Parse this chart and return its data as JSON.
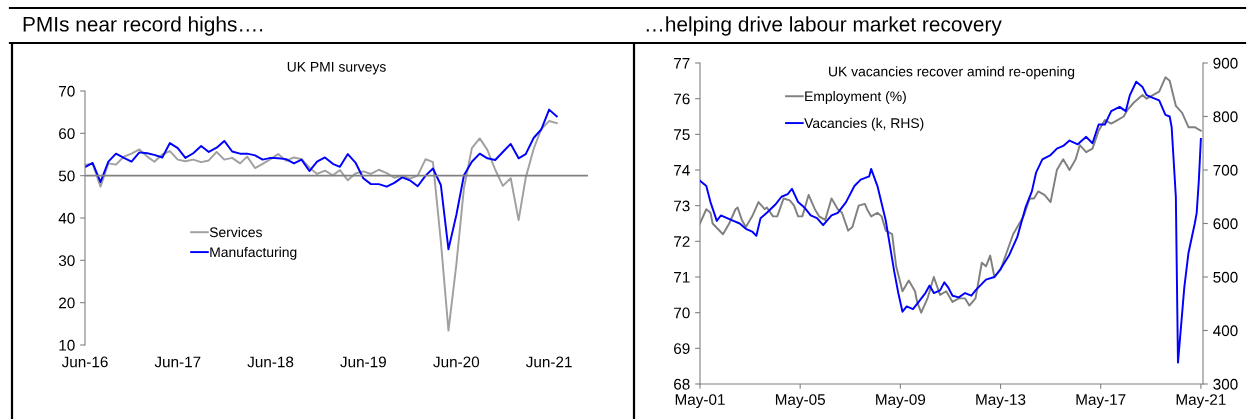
{
  "chart_data": [
    {
      "type": "line",
      "title": "PMIs near record highs….",
      "subtitle": "UK PMI surveys",
      "x": [
        "2016-06",
        "2016-07",
        "2016-08",
        "2016-09",
        "2016-10",
        "2016-11",
        "2016-12",
        "2017-01",
        "2017-02",
        "2017-03",
        "2017-04",
        "2017-05",
        "2017-06",
        "2017-07",
        "2017-08",
        "2017-09",
        "2017-10",
        "2017-11",
        "2017-12",
        "2018-01",
        "2018-02",
        "2018-03",
        "2018-04",
        "2018-05",
        "2018-06",
        "2018-07",
        "2018-08",
        "2018-09",
        "2018-10",
        "2018-11",
        "2018-12",
        "2019-01",
        "2019-02",
        "2019-03",
        "2019-04",
        "2019-05",
        "2019-06",
        "2019-07",
        "2019-08",
        "2019-09",
        "2019-10",
        "2019-11",
        "2019-12",
        "2020-01",
        "2020-02",
        "2020-03",
        "2020-04",
        "2020-05",
        "2020-06",
        "2020-07",
        "2020-08",
        "2020-09",
        "2020-10",
        "2020-11",
        "2020-12",
        "2021-01",
        "2021-02",
        "2021-03",
        "2021-04",
        "2021-05",
        "2021-06",
        "2021-07"
      ],
      "series": [
        {
          "name": "Services",
          "color": "#a0a0a0",
          "values": [
            52.5,
            52.8,
            47.4,
            52.9,
            52.6,
            54.5,
            55.2,
            56.2,
            54.5,
            53.3,
            55.0,
            55.8,
            53.8,
            53.4,
            53.8,
            53.2,
            53.6,
            55.6,
            53.8,
            54.2,
            52.9,
            54.5,
            51.8,
            52.8,
            53.9,
            55.1,
            53.5,
            54.3,
            53.9,
            51.9,
            50.4,
            51.2,
            50.1,
            51.3,
            48.9,
            50.5,
            51.0,
            50.4,
            51.4,
            50.6,
            49.5,
            50.0,
            49.3,
            50.0,
            53.9,
            53.2,
            34.5,
            13.4,
            29.0,
            47.1,
            56.5,
            58.8,
            56.1,
            51.4,
            47.6,
            49.4,
            39.5,
            49.5,
            56.3,
            61.0,
            62.9,
            62.4
          ]
        },
        {
          "name": "Manufacturing",
          "color": "#0000ff",
          "values": [
            52.0,
            53.0,
            48.5,
            53.3,
            55.2,
            54.2,
            53.3,
            55.5,
            55.3,
            54.9,
            54.3,
            57.7,
            56.5,
            54.2,
            55.3,
            57.0,
            55.6,
            56.6,
            58.2,
            55.7,
            55.2,
            55.2,
            54.8,
            53.8,
            54.2,
            54.1,
            53.9,
            52.9,
            53.8,
            51.1,
            53.3,
            54.3,
            52.8,
            52.1,
            55.1,
            53.1,
            49.4,
            48.0,
            48.0,
            47.4,
            48.3,
            49.6,
            48.9,
            47.5,
            50.0,
            51.7,
            47.8,
            32.6,
            40.7,
            50.1,
            53.3,
            55.2,
            54.1,
            53.7,
            55.6,
            57.5,
            54.1,
            55.1,
            58.9,
            60.9,
            65.6,
            64.0
          ]
        }
      ],
      "xlim": [
        "2016-06",
        "2021-11"
      ],
      "xticks": [
        {
          "value": "2016-06",
          "label": "Jun-16"
        },
        {
          "value": "2017-06",
          "label": "Jun-17"
        },
        {
          "value": "2018-06",
          "label": "Jun-18"
        },
        {
          "value": "2019-06",
          "label": "Jun-19"
        },
        {
          "value": "2020-06",
          "label": "Jun-20"
        },
        {
          "value": "2021-06",
          "label": "Jun-21"
        }
      ],
      "ylim": [
        10,
        70
      ],
      "yticks": [
        10,
        20,
        30,
        40,
        50,
        60,
        70
      ],
      "ref_lines": [
        {
          "axis": "y",
          "value": 50,
          "color": "#808080"
        }
      ],
      "legend": "center left",
      "grid": false,
      "marker": "none",
      "line_style": "solid"
    },
    {
      "type": "line",
      "title": "…helping drive labour market recovery",
      "subtitle": "UK vacancies recover amind re-opening",
      "series": [
        {
          "name": "Employment (%)",
          "color": "#808080",
          "x": [
            "2001-05",
            "2001-08",
            "2001-10",
            "2001-11",
            "2002-04",
            "2002-07",
            "2002-10",
            "2002-11",
            "2003-01",
            "2003-03",
            "2003-06",
            "2003-09",
            "2003-12",
            "2004-01",
            "2004-04",
            "2004-06",
            "2004-09",
            "2004-12",
            "2005-02",
            "2005-04",
            "2005-06",
            "2005-09",
            "2005-12",
            "2006-02",
            "2006-05",
            "2006-08",
            "2006-11",
            "2007-01",
            "2007-04",
            "2007-06",
            "2007-09",
            "2007-12",
            "2008-01",
            "2008-03",
            "2008-06",
            "2008-08",
            "2008-10",
            "2009-01",
            "2009-03",
            "2009-06",
            "2009-09",
            "2009-12",
            "2010-01",
            "2010-03",
            "2010-06",
            "2010-09",
            "2010-12",
            "2011-03",
            "2011-06",
            "2011-09",
            "2011-12",
            "2012-02",
            "2012-05",
            "2012-08",
            "2012-10",
            "2012-12",
            "2013-02",
            "2013-05",
            "2013-08",
            "2013-11",
            "2014-01",
            "2014-04",
            "2014-07",
            "2014-09",
            "2014-11",
            "2015-02",
            "2015-05",
            "2015-08",
            "2015-11",
            "2016-02",
            "2016-05",
            "2016-07",
            "2016-10",
            "2017-01",
            "2017-04",
            "2017-07",
            "2017-10",
            "2018-01",
            "2018-04",
            "2018-06",
            "2018-09",
            "2019-01",
            "2019-03",
            "2019-06",
            "2019-09",
            "2019-12",
            "2020-02",
            "2020-05",
            "2020-08",
            "2020-11",
            "2021-02",
            "2021-05"
          ],
          "values": [
            72.5,
            72.9,
            72.8,
            72.5,
            72.2,
            72.5,
            72.9,
            72.95,
            72.6,
            72.4,
            72.7,
            73.1,
            72.9,
            72.95,
            72.7,
            72.7,
            73.2,
            73.15,
            73.0,
            72.7,
            72.7,
            73.3,
            72.9,
            72.7,
            72.6,
            73.2,
            72.9,
            72.8,
            72.3,
            72.4,
            73.0,
            73.05,
            72.9,
            72.7,
            72.8,
            72.7,
            72.3,
            72.2,
            71.3,
            70.6,
            70.9,
            70.6,
            70.3,
            70.0,
            70.4,
            71.0,
            70.5,
            70.6,
            70.3,
            70.4,
            70.4,
            70.2,
            70.4,
            71.4,
            71.3,
            71.6,
            71.0,
            71.2,
            71.7,
            72.2,
            72.4,
            72.7,
            73.2,
            73.2,
            73.4,
            73.3,
            73.1,
            74.0,
            74.3,
            74.0,
            74.3,
            74.7,
            74.5,
            74.6,
            75.1,
            75.4,
            75.3,
            75.4,
            75.5,
            75.7,
            75.9,
            76.1,
            76.0,
            76.1,
            76.2,
            76.6,
            76.5,
            75.8,
            75.6,
            75.2,
            75.2,
            75.1
          ]
        },
        {
          "name": "Vacancies (k, RHS)",
          "color": "#0000ff",
          "axis": "y2",
          "x": [
            "2001-05",
            "2001-08",
            "2001-10",
            "2002-01",
            "2002-03",
            "2002-06",
            "2002-09",
            "2002-12",
            "2003-03",
            "2003-06",
            "2003-08",
            "2003-10",
            "2004-01",
            "2004-05",
            "2004-08",
            "2004-11",
            "2005-01",
            "2005-04",
            "2005-07",
            "2005-10",
            "2006-01",
            "2006-04",
            "2006-08",
            "2006-11",
            "2007-03",
            "2007-07",
            "2007-10",
            "2008-02",
            "2008-03",
            "2008-06",
            "2008-10",
            "2009-02",
            "2009-04",
            "2009-06",
            "2009-08",
            "2009-11",
            "2010-02",
            "2010-05",
            "2010-07",
            "2010-09",
            "2010-12",
            "2011-02",
            "2011-04",
            "2011-06",
            "2011-09",
            "2011-12",
            "2012-03",
            "2012-05",
            "2012-10",
            "2013-02",
            "2013-05",
            "2013-09",
            "2014-01",
            "2014-05",
            "2014-08",
            "2014-10",
            "2015-01",
            "2015-05",
            "2015-08",
            "2015-11",
            "2016-02",
            "2016-06",
            "2016-10",
            "2017-01",
            "2017-04",
            "2017-07",
            "2017-10",
            "2018-02",
            "2018-05",
            "2018-07",
            "2018-10",
            "2019-01",
            "2019-03",
            "2019-06",
            "2019-09",
            "2019-12",
            "2020-02",
            "2020-03",
            "2020-05",
            "2020-06",
            "2020-09",
            "2020-11",
            "2021-02",
            "2021-03",
            "2021-04",
            "2021-05"
          ],
          "values": [
            680,
            670,
            640,
            605,
            615,
            610,
            605,
            600,
            590,
            585,
            577,
            610,
            620,
            635,
            650,
            655,
            665,
            640,
            630,
            615,
            610,
            597,
            615,
            620,
            640,
            670,
            682,
            688,
            702,
            670,
            605,
            510,
            470,
            435,
            445,
            440,
            455,
            470,
            484,
            470,
            475,
            490,
            480,
            465,
            462,
            470,
            465,
            475,
            495,
            500,
            515,
            540,
            575,
            630,
            660,
            695,
            720,
            728,
            740,
            745,
            755,
            748,
            762,
            750,
            785,
            785,
            810,
            818,
            810,
            840,
            865,
            855,
            840,
            835,
            830,
            803,
            800,
            780,
            650,
            340,
            480,
            545,
            600,
            620,
            680,
            758
          ]
        }
      ],
      "xlim": [
        "2001-05",
        "2021-06"
      ],
      "xticks": [
        {
          "value": "2001-05",
          "label": "May-01"
        },
        {
          "value": "2005-05",
          "label": "May-05"
        },
        {
          "value": "2009-05",
          "label": "May-09"
        },
        {
          "value": "2013-05",
          "label": "May-13"
        },
        {
          "value": "2017-05",
          "label": "May-17"
        },
        {
          "value": "2021-05",
          "label": "May-21"
        }
      ],
      "ylim": [
        68,
        77
      ],
      "yticks": [
        68,
        69,
        70,
        71,
        72,
        73,
        74,
        75,
        76,
        77
      ],
      "y2lim": [
        300,
        900
      ],
      "y2ticks": [
        300,
        400,
        500,
        600,
        700,
        800,
        900
      ],
      "legend": "top left",
      "grid": false,
      "marker": "none",
      "line_style": "solid"
    }
  ]
}
